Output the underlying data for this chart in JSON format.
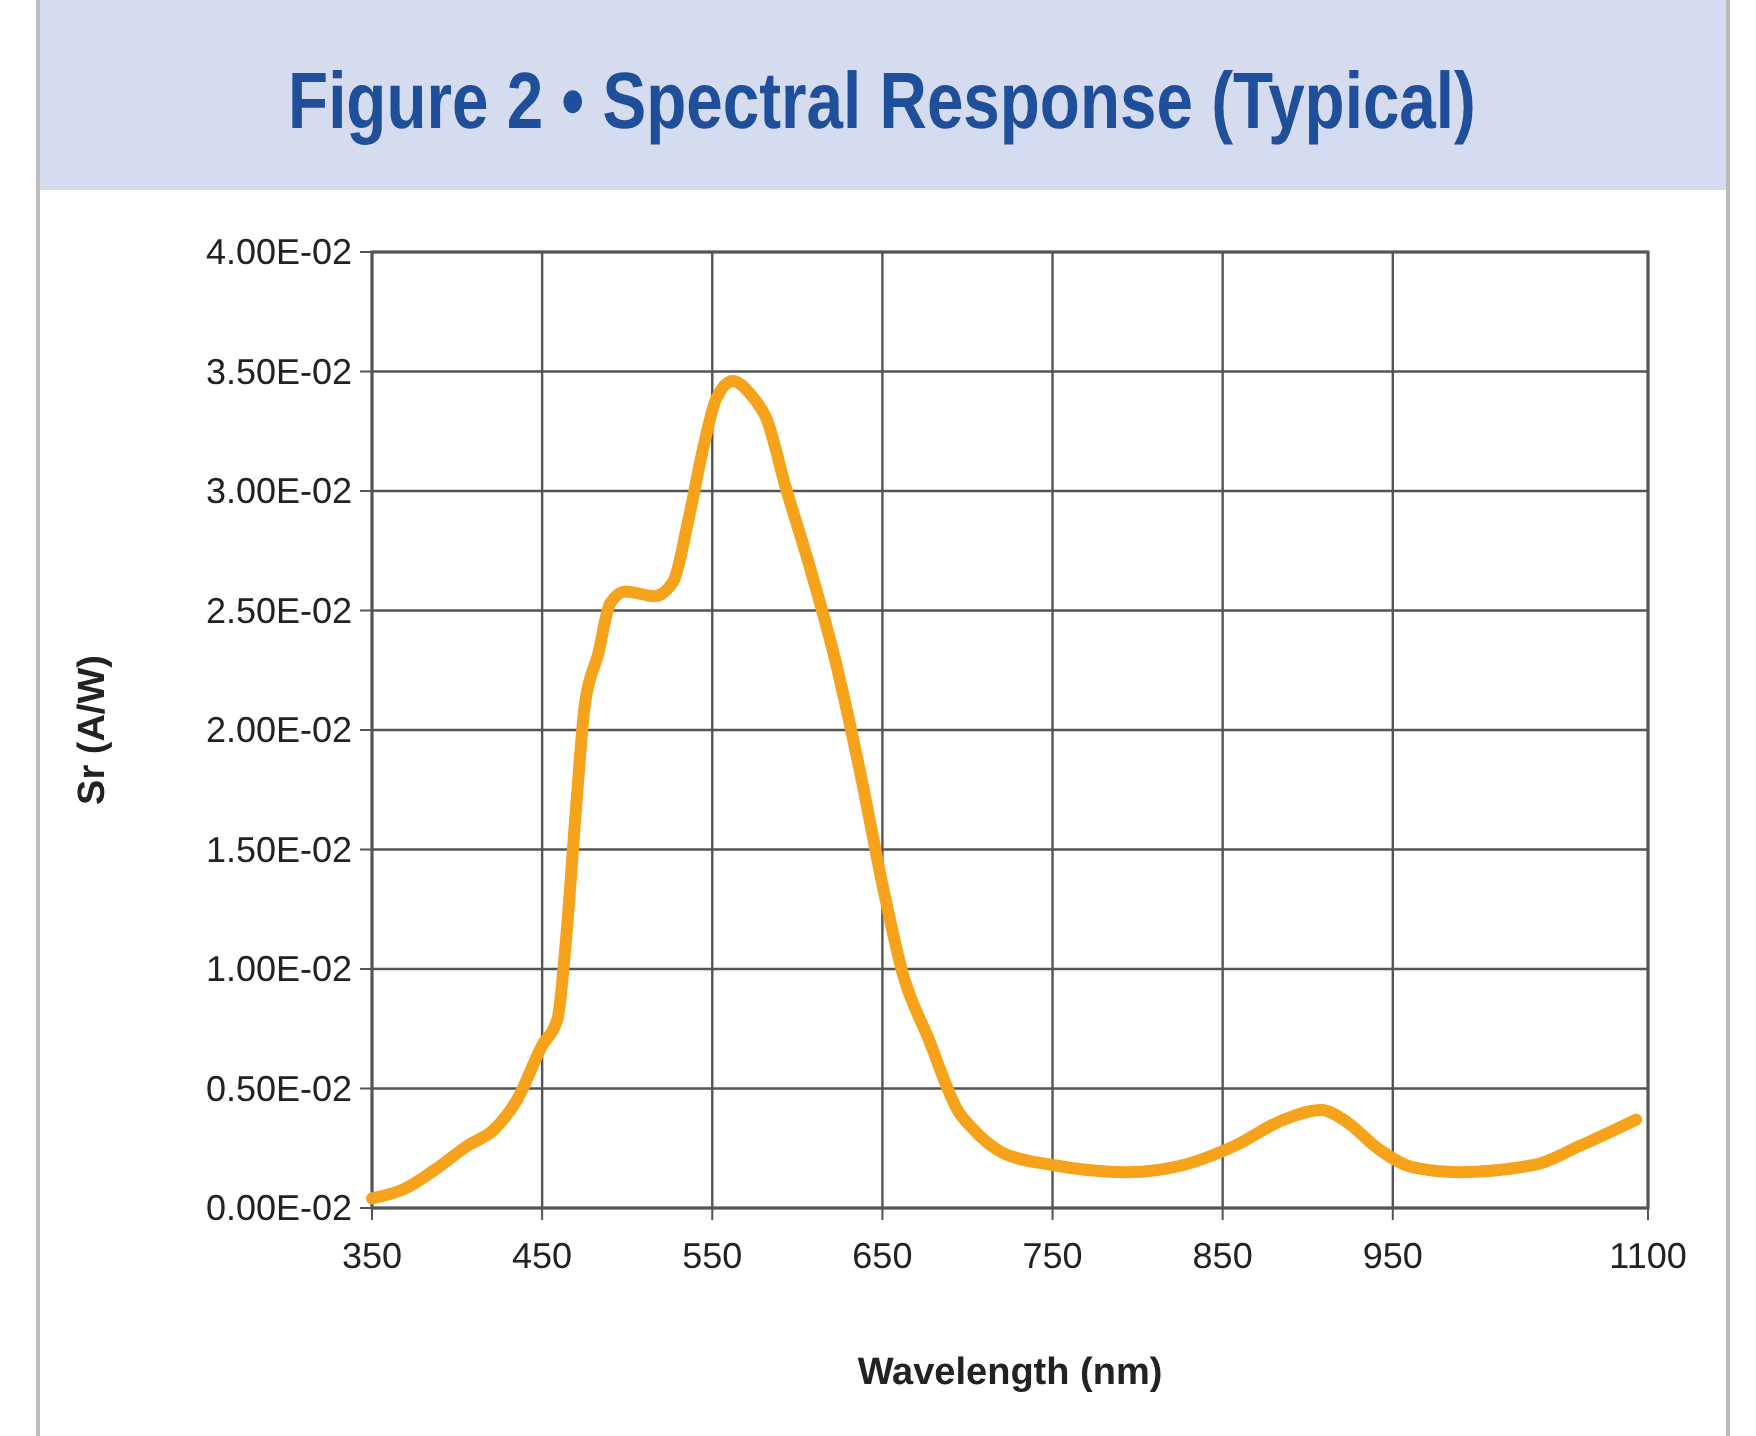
{
  "chart_data": {
    "type": "line",
    "title": "Figure 2 • Spectral Response (Typical)",
    "xlabel": "Wavelength (nm)",
    "ylabel": "Sr (A/W)",
    "xlim": [
      350,
      1100
    ],
    "xticks": [
      350,
      450,
      550,
      650,
      750,
      850,
      950,
      1100
    ],
    "ylim": [
      0,
      0.04
    ],
    "yticks": [
      {
        "value": 0,
        "label": "0.00E-02"
      },
      {
        "value": 0.005,
        "label": "0.50E-02"
      },
      {
        "value": 0.01,
        "label": "1.00E-02"
      },
      {
        "value": 0.015,
        "label": "1.50E-02"
      },
      {
        "value": 0.02,
        "label": "2.00E-02"
      },
      {
        "value": 0.025,
        "label": "2.50E-02"
      },
      {
        "value": 0.03,
        "label": "3.00E-02"
      },
      {
        "value": 0.035,
        "label": "3.50E-02"
      },
      {
        "value": 0.04,
        "label": "4.00E-02"
      }
    ],
    "grid": true,
    "marker": "none",
    "line_style": "solid",
    "series": [
      {
        "color": "#f7a21b",
        "x": [
          350,
          369,
          387,
          406,
          422,
          435,
          450,
          459,
          464,
          470,
          475,
          483,
          490,
          499,
          516,
          527,
          536,
          545,
          552,
          562,
          573,
          582,
          593,
          607,
          622,
          637,
          651,
          662,
          677,
          695,
          702,
          721,
          750,
          794,
          827,
          857,
          886,
          908,
          923,
          941,
          962,
          989,
          1033,
          1060,
          1093
        ],
        "values": [
          0.0004,
          0.0008,
          0.0016,
          0.0026,
          0.0033,
          0.0045,
          0.0068,
          0.0079,
          0.0112,
          0.0168,
          0.021,
          0.0232,
          0.0253,
          0.0258,
          0.0256,
          0.0262,
          0.0288,
          0.0319,
          0.0338,
          0.0346,
          0.034,
          0.033,
          0.0302,
          0.0269,
          0.023,
          0.0182,
          0.0132,
          0.0098,
          0.0071,
          0.004,
          0.0034,
          0.0023,
          0.0018,
          0.0015,
          0.0018,
          0.0026,
          0.0037,
          0.0041,
          0.0036,
          0.0025,
          0.0017,
          0.0015,
          0.0018,
          0.0026,
          0.0037
        ]
      }
    ]
  }
}
